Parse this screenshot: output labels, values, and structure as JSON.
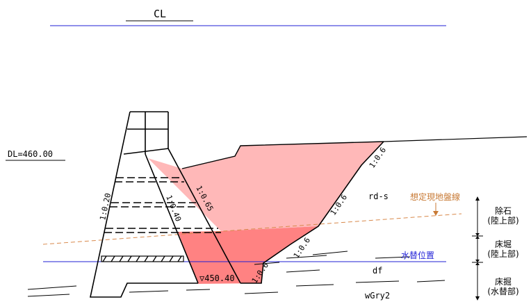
{
  "title": "CL",
  "datum_label": "DL=460.00",
  "bottom_level": "▽450.40",
  "slopes": {
    "upstream": "1:0.20",
    "inner_a": "1:0.65",
    "inner_b": "1:0.40",
    "right_top": "1:0.6",
    "right_mid": "1:0.6",
    "right_low": "1:0.6",
    "right_bottom": "1:0.6"
  },
  "soil": {
    "upper": "rd-s",
    "middle": "df",
    "lower": "wGry2"
  },
  "annotations": {
    "ground_line": "想定現地盤線",
    "water_line": "水替位置"
  },
  "zones": [
    {
      "name": "除石",
      "sub": "(陸上部)"
    },
    {
      "name": "床堀",
      "sub": "(陸上部)"
    },
    {
      "name": "床掘",
      "sub": "(水替部)"
    }
  ],
  "colors": {
    "blue_line": "#1f1fd6",
    "light_fill": "#ffb8b8",
    "deep_fill": "#ff8282",
    "ground_dash": "#d8884a",
    "annotation_text": "#c87a35",
    "water_text": "#1f1fd6"
  }
}
